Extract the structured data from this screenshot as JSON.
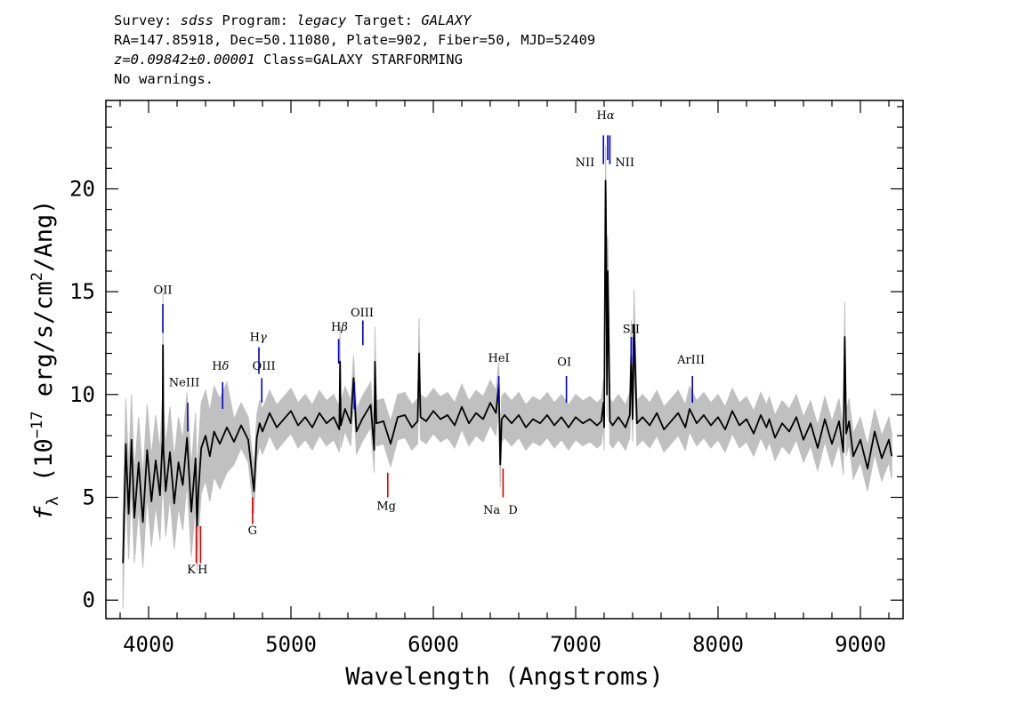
{
  "header": {
    "survey_label": "Survey:",
    "survey": "sdss",
    "program_label": "Program:",
    "program": "legacy",
    "target_label": "Target:",
    "target": "GALAXY",
    "line2": "RA=147.85918, Dec=50.11080, Plate=902, Fiber=50, MJD=52409",
    "redshift": "z=0.09842±0.00001",
    "class": "Class=GALAXY STARFORMING",
    "warnings": "No warnings."
  },
  "chart_data": {
    "type": "line",
    "xlabel": "Wavelength (Angstroms)",
    "ylabel": "f",
    "ylabel_sub": "λ",
    "ylabel_units": " (10",
    "ylabel_exp": "−17",
    "ylabel_rest": " erg/s/cm",
    "ylabel_exp2": "2",
    "ylabel_end": "/Ang)",
    "xlim": [
      3700,
      9300
    ],
    "ylim": [
      -0.9,
      24.3
    ],
    "x_ticks": [
      4000,
      5000,
      6000,
      7000,
      8000,
      9000
    ],
    "y_ticks": [
      0,
      5,
      10,
      15,
      20
    ],
    "x_tick_labels": [
      "4000",
      "5000",
      "6000",
      "7000",
      "8000",
      "9000"
    ],
    "y_tick_labels": [
      "0",
      "5",
      "10",
      "15",
      "20"
    ],
    "grid": false,
    "colors": {
      "flux": "#000000",
      "error": "#c0c0c0",
      "emission": "#0000cc",
      "absorption": "#dd0000"
    },
    "series": [
      {
        "role": "flux",
        "x": [
          3820,
          3840,
          3860,
          3880,
          3900,
          3930,
          3960,
          3990,
          4020,
          4050,
          4080,
          4098,
          4101,
          4104,
          4120,
          4150,
          4180,
          4210,
          4240,
          4270,
          4300,
          4330,
          4340,
          4350,
          4370,
          4400,
          4430,
          4460,
          4500,
          4550,
          4600,
          4650,
          4700,
          4740,
          4760,
          4780,
          4800,
          4850,
          4900,
          4950,
          5000,
          5050,
          5100,
          5150,
          5200,
          5250,
          5300,
          5340,
          5345,
          5350,
          5380,
          5420,
          5440,
          5460,
          5500,
          5560,
          5585,
          5590,
          5600,
          5650,
          5700,
          5750,
          5800,
          5850,
          5890,
          5900,
          5910,
          5950,
          6000,
          6050,
          6100,
          6150,
          6200,
          6250,
          6300,
          6350,
          6400,
          6440,
          6460,
          6470,
          6480,
          6500,
          6550,
          6600,
          6650,
          6700,
          6750,
          6800,
          6850,
          6900,
          6950,
          7000,
          7050,
          7100,
          7150,
          7180,
          7195,
          7200,
          7205,
          7210,
          7215,
          7220,
          7225,
          7230,
          7240,
          7260,
          7300,
          7350,
          7380,
          7390,
          7400,
          7410,
          7430,
          7470,
          7520,
          7570,
          7620,
          7670,
          7720,
          7770,
          7800,
          7850,
          7900,
          7950,
          8000,
          8050,
          8100,
          8150,
          8200,
          8250,
          8300,
          8340,
          8360,
          8400,
          8450,
          8500,
          8550,
          8600,
          8650,
          8700,
          8750,
          8800,
          8850,
          8880,
          8890,
          8900,
          8920,
          8950,
          9000,
          9050,
          9100,
          9150,
          9200,
          9220
        ],
        "y": [
          1.8,
          7.6,
          4.2,
          7.8,
          4.0,
          6.7,
          3.8,
          7.3,
          4.8,
          6.8,
          5.1,
          7.8,
          12.4,
          7.4,
          5.3,
          7.2,
          4.7,
          6.7,
          5.6,
          7.9,
          4.3,
          6.9,
          3.6,
          5.3,
          7.4,
          8.0,
          7.0,
          8.2,
          7.6,
          8.4,
          7.7,
          8.5,
          7.8,
          5.3,
          7.9,
          8.6,
          8.2,
          9.1,
          8.4,
          8.8,
          9.2,
          8.5,
          8.9,
          8.4,
          9.1,
          8.6,
          8.9,
          8.3,
          11.6,
          8.5,
          9.3,
          8.6,
          10.8,
          8.2,
          8.8,
          9.5,
          7.3,
          11.6,
          8.6,
          8.7,
          7.6,
          8.9,
          9.0,
          8.4,
          8.7,
          12.0,
          8.9,
          8.7,
          9.2,
          8.8,
          9.0,
          8.5,
          9.4,
          8.6,
          9.1,
          8.8,
          9.6,
          9.1,
          10.5,
          6.6,
          8.8,
          9.0,
          8.6,
          9.0,
          8.4,
          8.8,
          8.6,
          9.0,
          8.5,
          8.9,
          8.4,
          8.9,
          8.6,
          8.8,
          8.5,
          8.7,
          9.6,
          8.4,
          14.5,
          20.4,
          17.0,
          10.0,
          16.0,
          13.9,
          8.7,
          8.5,
          8.9,
          8.4,
          9.0,
          11.9,
          8.8,
          13.4,
          8.6,
          8.9,
          8.5,
          9.1,
          8.3,
          8.7,
          9.1,
          8.4,
          9.3,
          8.6,
          9.0,
          8.5,
          8.9,
          8.3,
          9.2,
          8.5,
          8.8,
          8.1,
          9.0,
          8.4,
          8.8,
          7.9,
          8.6,
          8.2,
          8.9,
          7.8,
          8.6,
          7.4,
          8.8,
          7.6,
          8.7,
          7.2,
          12.8,
          8.1,
          8.7,
          7.0,
          7.8,
          6.4,
          8.2,
          6.9,
          7.8,
          7.0
        ]
      }
    ],
    "line_labels": [
      {
        "text": "OII",
        "wavelength": 4100,
        "y": 14.9,
        "type": "emission"
      },
      {
        "text": "NeIII",
        "wavelength": 4250,
        "y": 10.4,
        "type": "emission"
      },
      {
        "text": "H",
        "greek": "δ",
        "wavelength": 4505,
        "y": 11.2,
        "type": "emission"
      },
      {
        "text": "H",
        "greek": "γ",
        "wavelength": 4770,
        "y": 12.6,
        "type": "emission"
      },
      {
        "text": "OIII",
        "wavelength": 4810,
        "y": 11.2,
        "type": "emission"
      },
      {
        "text": "H",
        "greek": "β",
        "wavelength": 5340,
        "y": 13.1,
        "type": "emission"
      },
      {
        "text": "OIII",
        "wavelength": 5500,
        "y": 13.8,
        "type": "emission"
      },
      {
        "text": "HeI",
        "wavelength": 6460,
        "y": 11.6,
        "type": "emission"
      },
      {
        "text": "OI",
        "wavelength": 6920,
        "y": 11.4,
        "type": "emission"
      },
      {
        "text": "NII",
        "wavelength": 7065,
        "y": 21.1,
        "type": "emission"
      },
      {
        "text": "H",
        "greek": "α",
        "wavelength": 7210,
        "y": 23.4,
        "type": "emission"
      },
      {
        "text": "NII",
        "wavelength": 7345,
        "y": 21.1,
        "type": "emission"
      },
      {
        "text": "SII",
        "wavelength": 7390,
        "y": 13.0,
        "type": "emission"
      },
      {
        "text": "ArIII",
        "wavelength": 7810,
        "y": 11.5,
        "type": "emission"
      },
      {
        "text": "K",
        "wavelength": 4300,
        "y": 1.3,
        "type": "absorption"
      },
      {
        "text": "H",
        "wavelength": 4380,
        "y": 1.3,
        "type": "absorption"
      },
      {
        "text": "G",
        "wavelength": 4730,
        "y": 3.2,
        "type": "absorption"
      },
      {
        "text": "Mg",
        "wavelength": 5670,
        "y": 4.4,
        "type": "absorption"
      },
      {
        "text": "Na",
        "wavelength": 6410,
        "y": 4.2,
        "type": "absorption"
      },
      {
        "text": "D",
        "wavelength": 6560,
        "y": 4.2,
        "type": "absorption"
      }
    ],
    "emission_markers": [
      {
        "x": 4100,
        "y_from": 13.0,
        "y_to": 14.4
      },
      {
        "x": 4275,
        "y_from": 8.2,
        "y_to": 9.6
      },
      {
        "x": 4520,
        "y_from": 9.3,
        "y_to": 10.6
      },
      {
        "x": 4775,
        "y_from": 11.0,
        "y_to": 12.3
      },
      {
        "x": 4795,
        "y_from": 9.6,
        "y_to": 10.8
      },
      {
        "x": 5335,
        "y_from": 11.5,
        "y_to": 12.7
      },
      {
        "x": 5445,
        "y_from": 9.3,
        "y_to": 10.6
      },
      {
        "x": 5505,
        "y_from": 12.4,
        "y_to": 13.6
      },
      {
        "x": 6460,
        "y_from": 9.6,
        "y_to": 10.9
      },
      {
        "x": 6935,
        "y_from": 9.6,
        "y_to": 10.9
      },
      {
        "x": 7195,
        "y_from": 21.2,
        "y_to": 22.6
      },
      {
        "x": 7225,
        "y_from": 21.4,
        "y_to": 22.6
      },
      {
        "x": 7240,
        "y_from": 21.2,
        "y_to": 22.6
      },
      {
        "x": 7390,
        "y_from": 11.5,
        "y_to": 12.8
      },
      {
        "x": 7405,
        "y_from": 11.5,
        "y_to": 12.8
      },
      {
        "x": 7820,
        "y_from": 9.6,
        "y_to": 10.9
      }
    ],
    "absorption_markers": [
      {
        "x": 4335,
        "y_from": 1.8,
        "y_to": 3.6
      },
      {
        "x": 4365,
        "y_from": 1.8,
        "y_to": 3.6
      },
      {
        "x": 4730,
        "y_from": 3.7,
        "y_to": 5.0
      },
      {
        "x": 5680,
        "y_from": 5.0,
        "y_to": 6.2
      },
      {
        "x": 6490,
        "y_from": 5.0,
        "y_to": 6.4
      }
    ]
  }
}
